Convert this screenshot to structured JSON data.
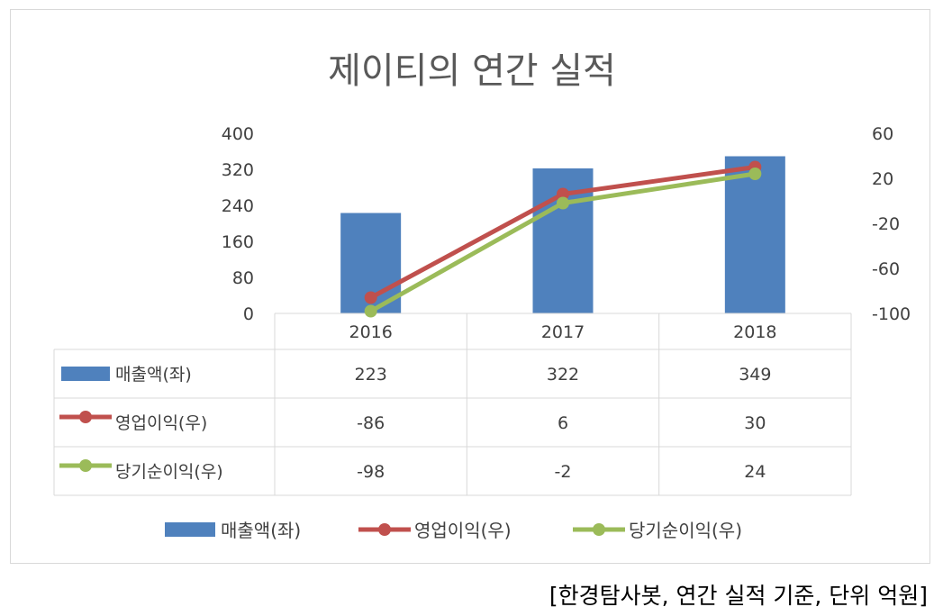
{
  "chart_data": {
    "type": "bar",
    "title": "제이티의 연간 실적",
    "categories": [
      "2016",
      "2017",
      "2018"
    ],
    "left_axis": {
      "ylim": [
        0,
        400
      ],
      "ticks": [
        "0",
        "80",
        "160",
        "240",
        "320",
        "400"
      ]
    },
    "right_axis": {
      "ylim": [
        -100,
        60
      ],
      "ticks": [
        "-100",
        "-60",
        "-20",
        "20",
        "60"
      ]
    },
    "series": [
      {
        "name": "매출액(좌)",
        "type": "bar",
        "axis": "left",
        "color": "#4F81BD",
        "values": [
          223,
          322,
          349
        ],
        "labels": [
          "223",
          "322",
          "349"
        ]
      },
      {
        "name": "영업이익(우)",
        "type": "line",
        "axis": "right",
        "color": "#C0504D",
        "values": [
          -86,
          6,
          30
        ],
        "labels": [
          "-86",
          "6",
          "30"
        ]
      },
      {
        "name": "당기순이익(우)",
        "type": "line",
        "axis": "right",
        "color": "#9BBB59",
        "values": [
          -98,
          -2,
          24
        ],
        "labels": [
          "-98",
          "-2",
          "24"
        ]
      }
    ],
    "grid": false,
    "data_table": true,
    "legend": "bottom"
  },
  "footnote": "[한경탐사봇, 연간 실적 기준, 단위 억원]"
}
